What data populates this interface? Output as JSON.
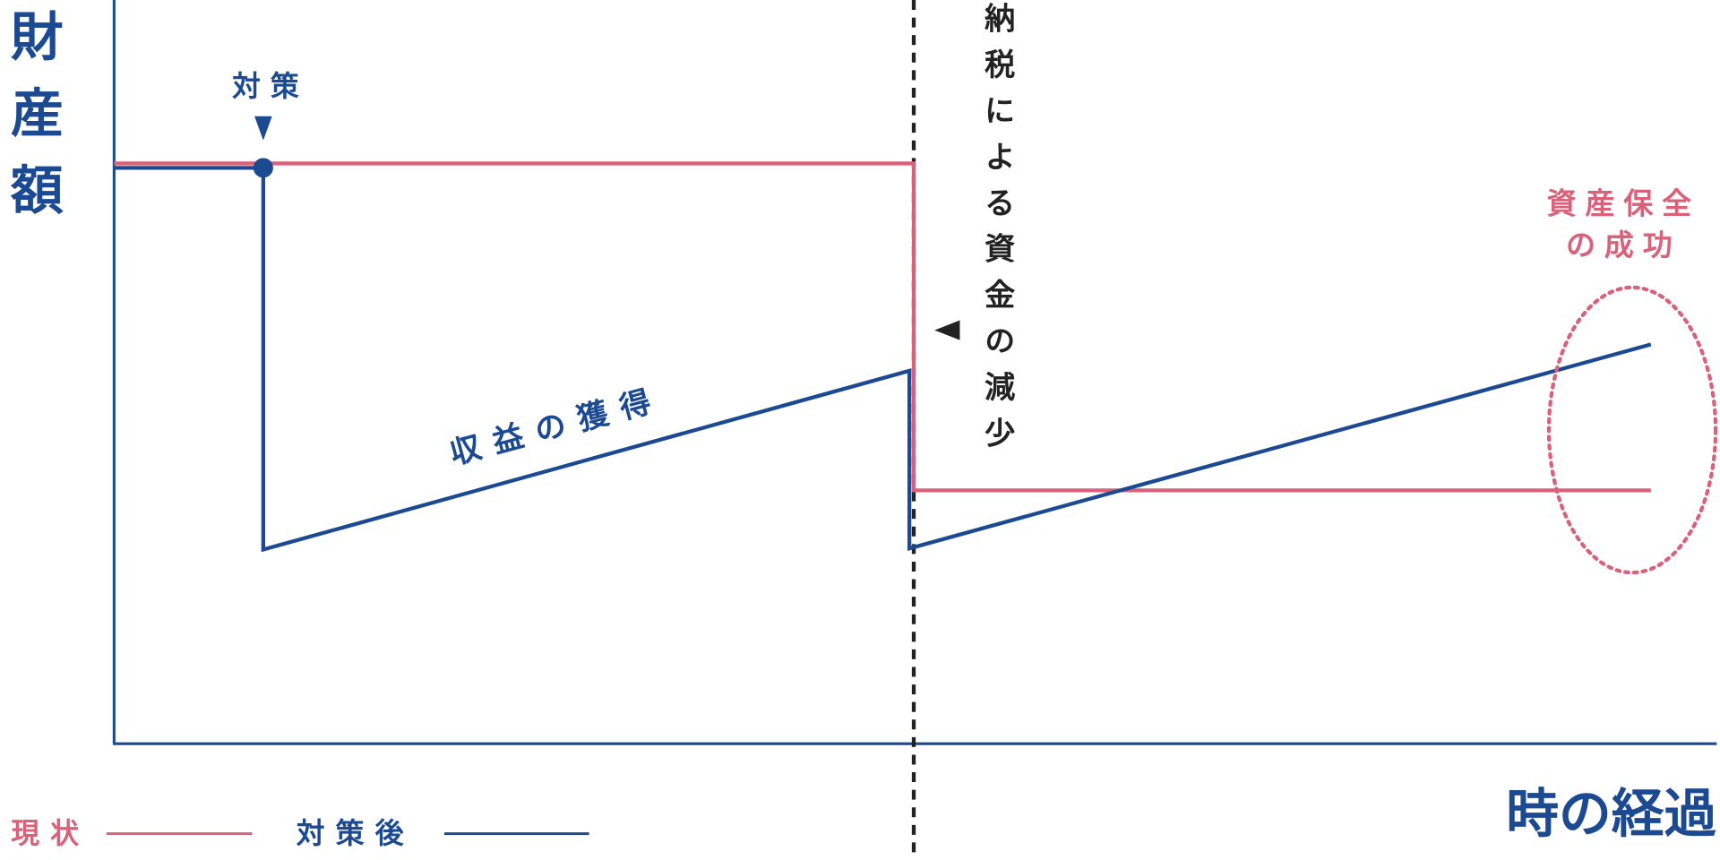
{
  "y_axis_label": "財産額",
  "x_axis_label": "時の経過",
  "annotations": {
    "measure": "対 策",
    "income": "収益の獲得",
    "tax": "納税による資金の減少",
    "success": [
      "資産保全",
      "の成功"
    ]
  },
  "legend": [
    {
      "name": "現状"
    },
    {
      "name": "対策後"
    }
  ]
}
